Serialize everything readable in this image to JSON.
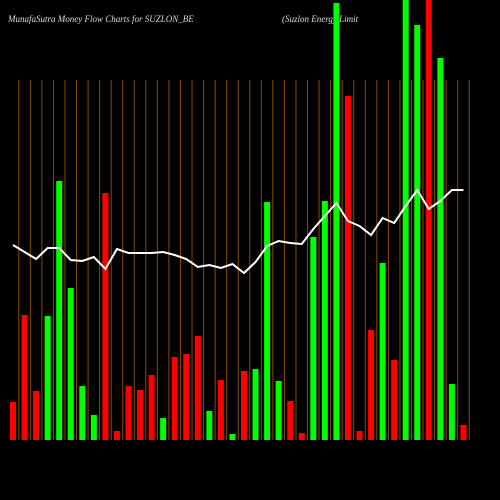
{
  "chart_data": {
    "type": "bar",
    "title": "MunafaSutra  Money Flow  Charts for SUZLON_BE",
    "subtitle": "(Suzlon  Energy  Limit",
    "categories": [
      null,
      null,
      null,
      null,
      null,
      null,
      null,
      null,
      null,
      null,
      null,
      null,
      null,
      null,
      null,
      null,
      null,
      null,
      null,
      null,
      null,
      null,
      null,
      null,
      null,
      null,
      null,
      null,
      null,
      null,
      null,
      null,
      null,
      null,
      null,
      null,
      null,
      null,
      null,
      null
    ],
    "ylim": [
      0,
      440
    ],
    "grid": true,
    "series": [
      {
        "color": "#00ff00",
        "negative_color": "#ff0000",
        "directions": [
          "down",
          "down",
          "down",
          "up",
          "up",
          "up",
          "up",
          "up",
          "down",
          "down",
          "down",
          "down",
          "down",
          "up",
          "down",
          "down",
          "down",
          "up",
          "down",
          "up",
          "down",
          "up",
          "up",
          "up",
          "down",
          "down",
          "up",
          "up",
          "up",
          "down",
          "down",
          "down",
          "up",
          "down",
          "up",
          "up",
          "down",
          "up",
          "up",
          "down"
        ],
        "values": [
          38,
          125,
          49,
          124,
          259,
          152,
          54,
          25,
          247,
          9,
          54,
          50,
          65,
          22,
          83,
          86,
          104,
          29,
          60,
          6,
          69,
          71,
          238,
          59,
          39,
          7,
          203,
          239,
          437,
          344,
          9,
          110,
          177,
          80,
          440,
          415,
          440,
          382,
          56,
          15
        ]
      },
      {
        "type": "line",
        "color": "#ffffff",
        "values": [
          195,
          188,
          181,
          192,
          192,
          180,
          179,
          183,
          171,
          191,
          187,
          187,
          187,
          188,
          185,
          181,
          173,
          175,
          172,
          176,
          167,
          178,
          194,
          199,
          197,
          196,
          211,
          224,
          237,
          219,
          214,
          205,
          222,
          217,
          234,
          250,
          231,
          239,
          250,
          250
        ]
      }
    ]
  }
}
